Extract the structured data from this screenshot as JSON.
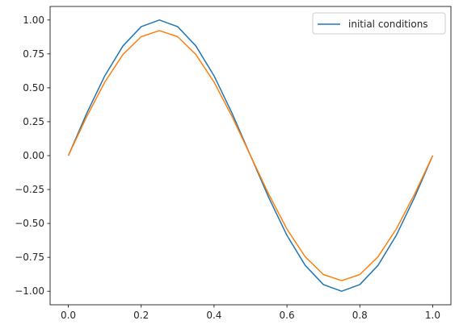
{
  "chart_data": {
    "type": "line",
    "title": "",
    "xlabel": "",
    "ylabel": "",
    "xlim": [
      -0.05,
      1.05
    ],
    "ylim": [
      -1.1,
      1.1
    ],
    "x_ticks": [
      0.0,
      0.2,
      0.4,
      0.6,
      0.8,
      1.0
    ],
    "x_tick_labels": [
      "0.0",
      "0.2",
      "0.4",
      "0.6",
      "0.8",
      "1.0"
    ],
    "y_ticks": [
      -1.0,
      -0.75,
      -0.5,
      -0.25,
      0.0,
      0.25,
      0.5,
      0.75,
      1.0
    ],
    "y_tick_labels": [
      "−1.00",
      "−0.75",
      "−0.50",
      "−0.25",
      "0.00",
      "0.25",
      "0.50",
      "0.75",
      "1.00"
    ],
    "grid": false,
    "legend_position": "top-right",
    "series": [
      {
        "name": "initial conditions",
        "color": "#1f77b4",
        "x": [
          0.0,
          0.05,
          0.1,
          0.15,
          0.2,
          0.25,
          0.3,
          0.35,
          0.4,
          0.45,
          0.5,
          0.55,
          0.6,
          0.65,
          0.7,
          0.75,
          0.8,
          0.85,
          0.9,
          0.95,
          1.0
        ],
        "y": [
          0.0,
          0.309,
          0.588,
          0.809,
          0.951,
          1.0,
          0.951,
          0.809,
          0.588,
          0.309,
          0.0,
          -0.309,
          -0.588,
          -0.809,
          -0.951,
          -1.0,
          -0.951,
          -0.809,
          -0.588,
          -0.309,
          0.0
        ]
      },
      {
        "color": "#ff7f0e",
        "x": [
          0.0,
          0.05,
          0.1,
          0.15,
          0.2,
          0.25,
          0.3,
          0.35,
          0.4,
          0.45,
          0.5,
          0.55,
          0.6,
          0.65,
          0.7,
          0.75,
          0.8,
          0.85,
          0.9,
          0.95,
          1.0
        ],
        "y": [
          0.0,
          0.285,
          0.542,
          0.746,
          0.877,
          0.922,
          0.877,
          0.746,
          0.542,
          0.285,
          0.0,
          -0.285,
          -0.542,
          -0.746,
          -0.877,
          -0.922,
          -0.877,
          -0.746,
          -0.542,
          -0.285,
          0.0
        ]
      }
    ]
  }
}
